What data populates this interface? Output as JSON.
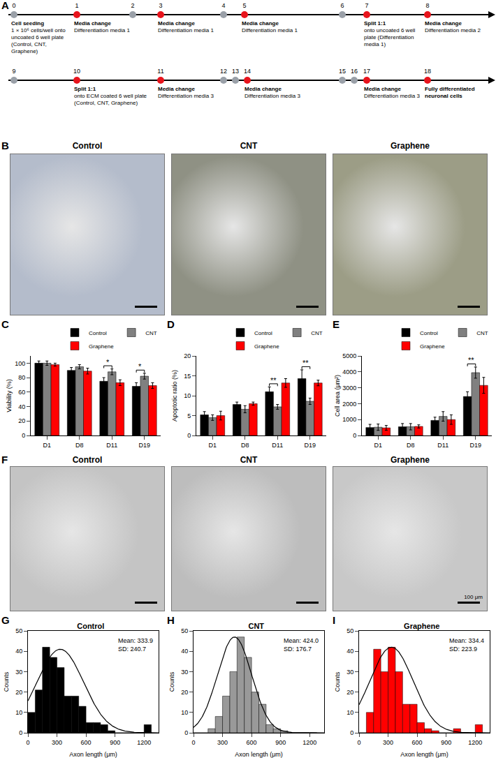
{
  "timeline": {
    "panel": "A",
    "rows": [
      [
        {
          "day": 0,
          "color": "#9aa0a8",
          "title": "Cell seeding",
          "text": "1 × 10⁶ cells/well onto uncoated 6 well plate (Control, CNT, Graphene)"
        },
        {
          "day": 1,
          "color": "#e8141c",
          "title": "Media change",
          "text": "Differentiation media 1"
        },
        {
          "day": 2,
          "color": "#9aa0a8"
        },
        {
          "day": 3,
          "color": "#e8141c",
          "title": "Media change",
          "text": "Differentiation media 1"
        },
        {
          "day": 4,
          "color": "#9aa0a8"
        },
        {
          "day": 5,
          "color": "#e8141c",
          "title": "Media change",
          "text": "Differentiation media 1"
        },
        {
          "day": 6,
          "color": "#9aa0a8"
        },
        {
          "day": 7,
          "color": "#e8141c",
          "title": "Split 1:1",
          "text": "onto uncoated 6 well plate (Differentiation media 1)"
        },
        {
          "day": 8,
          "color": "#e8141c",
          "title": "Media change",
          "text": "Differentiation media 2"
        }
      ],
      [
        {
          "day": 9,
          "color": "#9aa0a8"
        },
        {
          "day": 10,
          "color": "#e8141c",
          "title": "Split 1:1",
          "text": "onto ECM coated 6 well plate (Control, CNT, Graphene)"
        },
        {
          "day": 11,
          "color": "#e8141c",
          "title": "Media change",
          "text": "Differentiation media 3"
        },
        {
          "day": 12,
          "color": "#9aa0a8"
        },
        {
          "day": 13,
          "color": "#9aa0a8"
        },
        {
          "day": 14,
          "color": "#e8141c",
          "title": "Media change",
          "text": "Differentiation media 3"
        },
        {
          "day": 15,
          "color": "#9aa0a8"
        },
        {
          "day": 16,
          "color": "#9aa0a8"
        },
        {
          "day": 17,
          "color": "#e8141c",
          "title": "Media change",
          "text": "Differentiation media 3"
        },
        {
          "day": 18,
          "color": "#e8141c",
          "title": "Fully differentiated neuronal cells"
        }
      ]
    ]
  },
  "micrographs": [
    {
      "panel": "B",
      "titles": [
        "Control",
        "CNT",
        "Graphene"
      ]
    },
    {
      "panel": "F",
      "titles": [
        "Control",
        "CNT",
        "Graphene"
      ],
      "scale_bar_label": "100 μm"
    }
  ],
  "chart_data": [
    {
      "panel": "C",
      "type": "bar",
      "y_label": "Viability (%)",
      "categories": [
        "D1",
        "D8",
        "D11",
        "D19"
      ],
      "series": [
        {
          "name": "Control",
          "color": "#000000",
          "values": [
            100,
            90,
            75,
            68
          ],
          "errors": [
            3,
            4,
            5,
            5
          ]
        },
        {
          "name": "CNT",
          "color": "#808080",
          "values": [
            100,
            95,
            88,
            82
          ],
          "errors": [
            3,
            3,
            4,
            4
          ]
        },
        {
          "name": "Graphene",
          "color": "#ff0000",
          "values": [
            98,
            89,
            73,
            69
          ],
          "errors": [
            2,
            4,
            4,
            4
          ]
        }
      ],
      "ylim": [
        0,
        110
      ],
      "yticks": [
        0,
        20,
        40,
        60,
        80,
        100
      ],
      "grid": false,
      "legend": "top",
      "annotations": [
        {
          "category": "D11",
          "between": [
            "Control",
            "CNT"
          ],
          "text": "*"
        },
        {
          "category": "D19",
          "between": [
            "Control",
            "CNT"
          ],
          "text": "*"
        }
      ]
    },
    {
      "panel": "D",
      "type": "bar",
      "y_label": "Apoptotic ratio (%)",
      "categories": [
        "D1",
        "D8",
        "D11",
        "D19"
      ],
      "series": [
        {
          "name": "Control",
          "color": "#000000",
          "values": [
            5.2,
            7.8,
            11,
            14.3
          ],
          "errors": [
            0.8,
            0.6,
            1.2,
            2.2
          ]
        },
        {
          "name": "CNT",
          "color": "#808080",
          "values": [
            4.5,
            6.6,
            7.2,
            8.6
          ],
          "errors": [
            0.7,
            0.9,
            0.6,
            0.8
          ]
        },
        {
          "name": "Graphene",
          "color": "#ff0000",
          "values": [
            5,
            8,
            13.2,
            13.2
          ],
          "errors": [
            1.1,
            0.4,
            1.1,
            0.7
          ]
        }
      ],
      "ylim": [
        0,
        20
      ],
      "yticks": [
        0,
        5,
        10,
        15,
        20
      ],
      "grid": false,
      "legend": "top",
      "annotations": [
        {
          "category": "D11",
          "between": [
            "Control",
            "CNT"
          ],
          "text": "**"
        },
        {
          "category": "D19",
          "between": [
            "Control",
            "CNT"
          ],
          "text": "**"
        }
      ]
    },
    {
      "panel": "E",
      "type": "bar",
      "y_label": "Cell area (μm²)",
      "categories": [
        "D1",
        "D8",
        "D11",
        "D19"
      ],
      "series": [
        {
          "name": "Control",
          "color": "#000000",
          "values": [
            500,
            550,
            950,
            2450
          ],
          "errors": [
            200,
            200,
            200,
            300
          ]
        },
        {
          "name": "CNT",
          "color": "#808080",
          "values": [
            520,
            550,
            1200,
            3950
          ],
          "errors": [
            200,
            200,
            300,
            350
          ]
        },
        {
          "name": "Graphene",
          "color": "#ff0000",
          "values": [
            480,
            570,
            1000,
            3150
          ],
          "errors": [
            150,
            100,
            300,
            500
          ]
        }
      ],
      "ylim": [
        0,
        5000
      ],
      "yticks": [
        0,
        1000,
        2000,
        3000,
        4000,
        5000
      ],
      "grid": false,
      "legend": "top",
      "annotations": [
        {
          "category": "D19",
          "between": [
            "Control",
            "CNT"
          ],
          "text": "**"
        }
      ]
    },
    {
      "panel": "G",
      "type": "histogram",
      "title": "Control",
      "x_label": "Axon length (μm)",
      "y_label": "Counts",
      "color": "#000000",
      "bins": [
        0,
        75,
        150,
        225,
        300,
        375,
        450,
        525,
        600,
        675,
        750,
        825,
        900,
        975,
        1050,
        1125,
        1200,
        1275
      ],
      "counts": [
        10,
        21,
        42,
        37,
        32,
        18,
        18,
        13,
        5,
        5,
        4,
        1,
        0,
        0,
        0,
        0,
        4
      ],
      "fit": {
        "mean": 333.9,
        "sd": 240.7,
        "peak": 41
      },
      "annotations": [
        "Mean: 333.9",
        "SD: 240.7"
      ],
      "xlim": [
        0,
        1350
      ],
      "xticks": [
        0,
        300,
        600,
        900,
        1200
      ],
      "ylim": [
        0,
        50
      ],
      "yticks": [
        0,
        10,
        20,
        30,
        40,
        50
      ],
      "grid": false
    },
    {
      "panel": "H",
      "type": "histogram",
      "title": "CNT",
      "x_label": "Axon length (μm)",
      "y_label": "Counts",
      "color": "#999999",
      "bins": [
        0,
        75,
        150,
        225,
        300,
        375,
        450,
        525,
        600,
        675,
        750,
        825,
        900,
        975,
        1050,
        1125,
        1200,
        1275
      ],
      "counts": [
        0,
        0,
        2,
        8,
        18,
        30,
        47,
        37,
        20,
        14,
        4,
        2,
        1,
        0,
        0,
        0,
        0
      ],
      "fit": {
        "mean": 424.0,
        "sd": 176.7,
        "peak": 47
      },
      "annotations": [
        "Mean: 424.0",
        "SD: 176.7"
      ],
      "xlim": [
        0,
        1350
      ],
      "xticks": [
        0,
        300,
        600,
        900,
        1200
      ],
      "ylim": [
        0,
        50
      ],
      "yticks": [
        0,
        10,
        20,
        30,
        40,
        50
      ],
      "grid": false
    },
    {
      "panel": "I",
      "type": "histogram",
      "title": "Graphene",
      "x_label": "Axon length (μm)",
      "y_label": "Counts",
      "color": "#ff0000",
      "bins": [
        0,
        75,
        150,
        225,
        300,
        375,
        450,
        525,
        600,
        675,
        750,
        825,
        900,
        975,
        1050,
        1125,
        1200,
        1275
      ],
      "counts": [
        0,
        10,
        41,
        30,
        42,
        30,
        14,
        14,
        5,
        2,
        1,
        0,
        0,
        2,
        0,
        0,
        4
      ],
      "fit": {
        "mean": 334.4,
        "sd": 223.9,
        "peak": 42
      },
      "annotations": [
        "Mean: 334.4",
        "SD: 223.9"
      ],
      "xlim": [
        0,
        1350
      ],
      "xticks": [
        0,
        300,
        600,
        900,
        1200
      ],
      "ylim": [
        0,
        50
      ],
      "yticks": [
        0,
        10,
        20,
        30,
        40,
        50
      ],
      "grid": false
    }
  ]
}
